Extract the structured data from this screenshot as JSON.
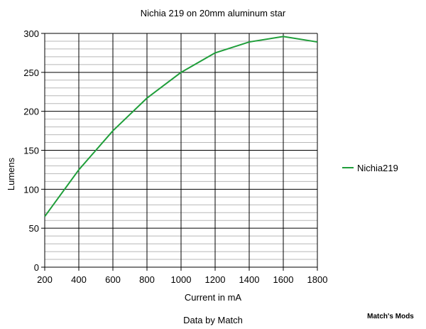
{
  "chart_data": {
    "type": "line",
    "title": "Nichia 219 on 20mm aluminum star",
    "xlabel": "Current in mA",
    "ylabel": "Lumens",
    "subcaption": "Data by Match",
    "watermark": "Match's Mods",
    "x": [
      200,
      400,
      600,
      800,
      1000,
      1200,
      1400,
      1600,
      1800
    ],
    "series": [
      {
        "name": "Nichia219",
        "color": "#1f9e3a",
        "values": [
          65,
          125,
          175,
          217,
          250,
          275,
          289,
          296,
          289
        ]
      }
    ],
    "xlim": [
      200,
      1800
    ],
    "ylim": [
      0,
      300
    ],
    "xticks": [
      200,
      400,
      600,
      800,
      1000,
      1200,
      1400,
      1600,
      1800
    ],
    "yticks": [
      0,
      50,
      100,
      150,
      200,
      250,
      300
    ],
    "grid": true,
    "minor_ygrid_step": 10,
    "legend": "right"
  }
}
